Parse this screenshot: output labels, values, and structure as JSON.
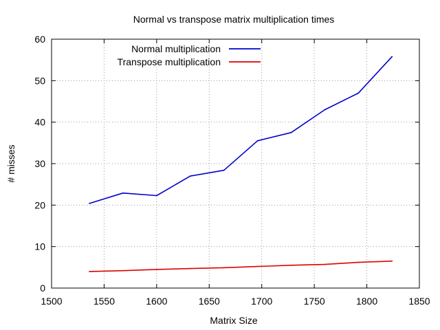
{
  "chart_data": {
    "type": "line",
    "title": "Normal vs transpose matrix multiplication times",
    "xlabel": "Matrix Size",
    "ylabel": "# misses",
    "xlim": [
      1500,
      1850
    ],
    "ylim": [
      0,
      60
    ],
    "xticks": [
      1500,
      1550,
      1600,
      1650,
      1700,
      1750,
      1800,
      1850
    ],
    "yticks": [
      0,
      10,
      20,
      30,
      40,
      50,
      60
    ],
    "grid": true,
    "legend_position": "top-left",
    "series": [
      {
        "name": "Normal multiplication",
        "color": "#0000cc",
        "x": [
          1536,
          1568,
          1600,
          1632,
          1664,
          1696,
          1728,
          1760,
          1792,
          1824
        ],
        "y": [
          20.4,
          22.9,
          22.3,
          27.0,
          28.4,
          35.5,
          37.5,
          43.0,
          47.0,
          55.8
        ]
      },
      {
        "name": "Transpose multiplication",
        "color": "#dd0000",
        "x": [
          1536,
          1568,
          1600,
          1632,
          1664,
          1696,
          1728,
          1760,
          1792,
          1824
        ],
        "y": [
          4.0,
          4.2,
          4.5,
          4.7,
          4.9,
          5.2,
          5.5,
          5.7,
          6.2,
          6.5
        ]
      }
    ]
  }
}
